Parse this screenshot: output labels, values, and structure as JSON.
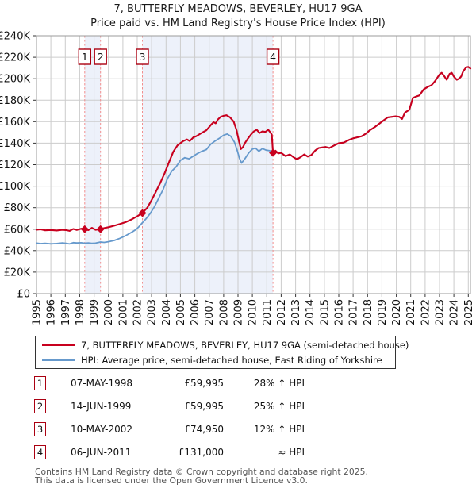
{
  "title": {
    "line1": "7, BUTTERFLY MEADOWS, BEVERLEY, HU17 9GA",
    "line2": "Price paid vs. HM Land Registry's House Price Index (HPI)"
  },
  "chart_data": {
    "type": "line",
    "title": "7, BUTTERFLY MEADOWS, BEVERLEY, HU17 9GA — Price paid vs. HPI",
    "xlabel": "",
    "ylabel": "",
    "grid": true,
    "legend_position": "bottom",
    "units": "GBP thousands",
    "x_domain": [
      1995,
      2025.15
    ],
    "y_domain": [
      0,
      240
    ],
    "x_ticks": [
      1995,
      1996,
      1997,
      1998,
      1999,
      2000,
      2001,
      2002,
      2003,
      2004,
      2005,
      2006,
      2007,
      2008,
      2009,
      2010,
      2011,
      2012,
      2013,
      2014,
      2015,
      2016,
      2017,
      2018,
      2019,
      2020,
      2021,
      2022,
      2023,
      2024,
      2025
    ],
    "y_ticks": [
      {
        "value": 240,
        "label": "£240K"
      },
      {
        "value": 220,
        "label": "£220K"
      },
      {
        "value": 200,
        "label": "£200K"
      },
      {
        "value": 180,
        "label": "£180K"
      },
      {
        "value": 160,
        "label": "£160K"
      },
      {
        "value": 140,
        "label": "£140K"
      },
      {
        "value": 120,
        "label": "£120K"
      },
      {
        "value": 100,
        "label": "£100K"
      },
      {
        "value": 80,
        "label": "£80K"
      },
      {
        "value": 60,
        "label": "£60K"
      },
      {
        "value": 40,
        "label": "£40K"
      },
      {
        "value": 20,
        "label": "£20K"
      },
      {
        "value": 0,
        "label": "£0"
      }
    ],
    "bands": [
      {
        "from": 1998.35,
        "to": 1999.45
      },
      {
        "from": 2002.36,
        "to": 2011.43
      }
    ],
    "markers": [
      {
        "label": "1",
        "year": 1998.35,
        "value": 60.0
      },
      {
        "label": "2",
        "year": 1999.45,
        "value": 60.0
      },
      {
        "label": "3",
        "year": 2002.36,
        "value": 74.95
      },
      {
        "label": "4",
        "year": 2011.43,
        "value": 131.0
      }
    ],
    "colors": {
      "price": "#c8001e",
      "hpi": "#6699cc",
      "band": "#edf1fa",
      "dashed": "#f28e8e",
      "grid": "#cccccc",
      "border": "#9b9b9b",
      "tick": "#333333",
      "marker_box_border": "#aa0011"
    },
    "series": [
      {
        "name": "7, BUTTERFLY MEADOWS, BEVERLEY, HU17 9GA (semi-detached house)",
        "color": "#c8001e",
        "points": [
          [
            1995.0,
            59.5
          ],
          [
            1995.3,
            59.8
          ],
          [
            1995.6,
            58.9
          ],
          [
            1996.0,
            59.2
          ],
          [
            1996.4,
            58.8
          ],
          [
            1996.8,
            59.4
          ],
          [
            1997.1,
            59.0
          ],
          [
            1997.3,
            58.4
          ],
          [
            1997.55,
            60.2
          ],
          [
            1997.8,
            59.2
          ],
          [
            1998.1,
            60.4
          ],
          [
            1998.35,
            60.0
          ],
          [
            1998.6,
            59.1
          ],
          [
            1998.85,
            61.2
          ],
          [
            1999.1,
            59.4
          ],
          [
            1999.45,
            60.0
          ],
          [
            1999.7,
            61.0
          ],
          [
            2000.0,
            61.8
          ],
          [
            2000.4,
            63.2
          ],
          [
            2000.8,
            64.8
          ],
          [
            2001.2,
            66.5
          ],
          [
            2001.6,
            69.0
          ],
          [
            2002.0,
            72.0
          ],
          [
            2002.36,
            75.0
          ],
          [
            2002.7,
            80.0
          ],
          [
            2003.0,
            87.0
          ],
          [
            2003.3,
            95.0
          ],
          [
            2003.6,
            103.0
          ],
          [
            2003.9,
            112.0
          ],
          [
            2004.2,
            122.0
          ],
          [
            2004.5,
            132.0
          ],
          [
            2004.8,
            138.0
          ],
          [
            2005.0,
            140.0
          ],
          [
            2005.2,
            142.0
          ],
          [
            2005.45,
            143.5
          ],
          [
            2005.65,
            142.0
          ],
          [
            2005.9,
            145.5
          ],
          [
            2006.1,
            146.5
          ],
          [
            2006.35,
            148.5
          ],
          [
            2006.6,
            150.5
          ],
          [
            2006.8,
            152.0
          ],
          [
            2007.0,
            155.0
          ],
          [
            2007.15,
            157.5
          ],
          [
            2007.3,
            159.5
          ],
          [
            2007.45,
            158.5
          ],
          [
            2007.6,
            162.0
          ],
          [
            2007.8,
            164.5
          ],
          [
            2008.0,
            165.5
          ],
          [
            2008.2,
            166.0
          ],
          [
            2008.45,
            164.0
          ],
          [
            2008.7,
            160.0
          ],
          [
            2008.9,
            152.0
          ],
          [
            2009.05,
            143.0
          ],
          [
            2009.2,
            134.5
          ],
          [
            2009.35,
            136.5
          ],
          [
            2009.5,
            140.5
          ],
          [
            2009.7,
            144.5
          ],
          [
            2009.9,
            148.0
          ],
          [
            2010.1,
            151.0
          ],
          [
            2010.3,
            152.5
          ],
          [
            2010.5,
            149.5
          ],
          [
            2010.7,
            151.0
          ],
          [
            2010.9,
            150.5
          ],
          [
            2011.1,
            152.5
          ],
          [
            2011.25,
            150.0
          ],
          [
            2011.35,
            148.0
          ],
          [
            2011.43,
            131.0
          ],
          [
            2011.6,
            133.0
          ],
          [
            2011.8,
            130.5
          ],
          [
            2012.0,
            131.0
          ],
          [
            2012.3,
            128.0
          ],
          [
            2012.6,
            129.5
          ],
          [
            2012.9,
            126.5
          ],
          [
            2013.1,
            125.0
          ],
          [
            2013.35,
            127.0
          ],
          [
            2013.6,
            129.5
          ],
          [
            2013.85,
            127.5
          ],
          [
            2014.1,
            129.0
          ],
          [
            2014.35,
            133.0
          ],
          [
            2014.6,
            135.5
          ],
          [
            2014.85,
            136.0
          ],
          [
            2015.1,
            136.5
          ],
          [
            2015.35,
            135.5
          ],
          [
            2015.7,
            138.0
          ],
          [
            2016.0,
            140.0
          ],
          [
            2016.35,
            140.5
          ],
          [
            2016.7,
            143.0
          ],
          [
            2017.0,
            144.5
          ],
          [
            2017.3,
            145.5
          ],
          [
            2017.6,
            146.5
          ],
          [
            2017.9,
            149.0
          ],
          [
            2018.15,
            152.0
          ],
          [
            2018.5,
            155.0
          ],
          [
            2018.85,
            158.5
          ],
          [
            2019.1,
            161.0
          ],
          [
            2019.4,
            164.0
          ],
          [
            2019.7,
            164.5
          ],
          [
            2019.95,
            165.0
          ],
          [
            2020.2,
            164.5
          ],
          [
            2020.4,
            162.5
          ],
          [
            2020.6,
            168.5
          ],
          [
            2020.9,
            171.0
          ],
          [
            2021.15,
            182.0
          ],
          [
            2021.4,
            183.5
          ],
          [
            2021.6,
            184.5
          ],
          [
            2021.9,
            190.0
          ],
          [
            2022.2,
            192.5
          ],
          [
            2022.45,
            194.0
          ],
          [
            2022.7,
            198.0
          ],
          [
            2023.0,
            204.0
          ],
          [
            2023.15,
            205.5
          ],
          [
            2023.3,
            203.0
          ],
          [
            2023.5,
            199.0
          ],
          [
            2023.7,
            204.5
          ],
          [
            2023.85,
            205.5
          ],
          [
            2024.0,
            202.0
          ],
          [
            2024.2,
            199.0
          ],
          [
            2024.35,
            200.0
          ],
          [
            2024.5,
            202.0
          ],
          [
            2024.65,
            207.0
          ],
          [
            2024.85,
            210.5
          ],
          [
            2025.0,
            211.0
          ],
          [
            2025.15,
            209.5
          ]
        ]
      },
      {
        "name": "HPI: Average price, semi-detached house, East Riding of Yorkshire",
        "color": "#6699cc",
        "points": [
          [
            1995.0,
            47.0
          ],
          [
            1995.3,
            46.5
          ],
          [
            1995.6,
            46.8
          ],
          [
            1996.0,
            46.3
          ],
          [
            1996.4,
            46.6
          ],
          [
            1996.8,
            47.1
          ],
          [
            1997.1,
            46.7
          ],
          [
            1997.3,
            46.2
          ],
          [
            1997.55,
            47.4
          ],
          [
            1997.8,
            47.1
          ],
          [
            1998.1,
            47.3
          ],
          [
            1998.35,
            46.9
          ],
          [
            1998.6,
            47.2
          ],
          [
            1998.85,
            46.8
          ],
          [
            1999.1,
            47.0
          ],
          [
            1999.45,
            48.0
          ],
          [
            1999.7,
            47.6
          ],
          [
            2000.0,
            48.3
          ],
          [
            2000.4,
            49.5
          ],
          [
            2000.8,
            51.5
          ],
          [
            2001.2,
            54.0
          ],
          [
            2001.6,
            57.0
          ],
          [
            2001.9,
            59.5
          ],
          [
            2002.1,
            62.0
          ],
          [
            2002.36,
            66.0
          ],
          [
            2002.6,
            69.5
          ],
          [
            2002.9,
            74.5
          ],
          [
            2003.2,
            81.0
          ],
          [
            2003.5,
            89.0
          ],
          [
            2003.8,
            97.0
          ],
          [
            2004.1,
            107.0
          ],
          [
            2004.4,
            114.0
          ],
          [
            2004.7,
            118.0
          ],
          [
            2005.0,
            124.0
          ],
          [
            2005.3,
            126.5
          ],
          [
            2005.6,
            125.5
          ],
          [
            2005.9,
            128.0
          ],
          [
            2006.2,
            130.5
          ],
          [
            2006.5,
            132.5
          ],
          [
            2006.8,
            134.0
          ],
          [
            2007.1,
            139.0
          ],
          [
            2007.4,
            142.0
          ],
          [
            2007.7,
            144.5
          ],
          [
            2008.0,
            147.5
          ],
          [
            2008.25,
            148.5
          ],
          [
            2008.5,
            146.5
          ],
          [
            2008.75,
            141.0
          ],
          [
            2008.95,
            133.0
          ],
          [
            2009.1,
            126.0
          ],
          [
            2009.25,
            121.5
          ],
          [
            2009.5,
            126.0
          ],
          [
            2009.75,
            131.0
          ],
          [
            2010.0,
            134.5
          ],
          [
            2010.2,
            135.5
          ],
          [
            2010.45,
            132.5
          ],
          [
            2010.7,
            135.0
          ],
          [
            2010.95,
            133.5
          ],
          [
            2011.2,
            133.0
          ],
          [
            2011.43,
            131.0
          ],
          [
            2011.6,
            133.0
          ],
          [
            2011.8,
            130.5
          ],
          [
            2012.0,
            131.0
          ],
          [
            2012.3,
            128.0
          ],
          [
            2012.6,
            129.5
          ],
          [
            2012.9,
            126.5
          ],
          [
            2013.1,
            125.0
          ],
          [
            2013.35,
            127.0
          ],
          [
            2013.6,
            129.5
          ],
          [
            2013.85,
            127.5
          ],
          [
            2014.1,
            129.0
          ],
          [
            2014.35,
            133.0
          ],
          [
            2014.6,
            135.5
          ],
          [
            2014.85,
            136.0
          ],
          [
            2015.1,
            136.5
          ],
          [
            2015.35,
            135.5
          ],
          [
            2015.7,
            138.0
          ],
          [
            2016.0,
            140.0
          ],
          [
            2016.35,
            140.5
          ],
          [
            2016.7,
            143.0
          ],
          [
            2017.0,
            144.5
          ],
          [
            2017.3,
            145.5
          ],
          [
            2017.6,
            146.5
          ],
          [
            2017.9,
            149.0
          ],
          [
            2018.15,
            152.0
          ],
          [
            2018.5,
            155.0
          ],
          [
            2018.85,
            158.5
          ],
          [
            2019.1,
            161.0
          ],
          [
            2019.4,
            164.0
          ],
          [
            2019.7,
            164.5
          ],
          [
            2019.95,
            165.0
          ],
          [
            2020.2,
            164.5
          ],
          [
            2020.4,
            162.5
          ],
          [
            2020.6,
            168.5
          ],
          [
            2020.9,
            171.0
          ],
          [
            2021.15,
            182.0
          ],
          [
            2021.4,
            183.5
          ],
          [
            2021.6,
            184.5
          ],
          [
            2021.9,
            190.0
          ],
          [
            2022.2,
            192.5
          ],
          [
            2022.45,
            194.0
          ],
          [
            2022.7,
            198.0
          ],
          [
            2023.0,
            204.0
          ],
          [
            2023.15,
            205.5
          ],
          [
            2023.3,
            203.0
          ],
          [
            2023.5,
            199.0
          ],
          [
            2023.7,
            204.5
          ],
          [
            2023.85,
            205.5
          ],
          [
            2024.0,
            202.0
          ],
          [
            2024.2,
            199.0
          ],
          [
            2024.35,
            200.0
          ],
          [
            2024.5,
            202.0
          ],
          [
            2024.65,
            207.0
          ],
          [
            2024.85,
            210.5
          ],
          [
            2025.0,
            211.0
          ],
          [
            2025.15,
            209.5
          ]
        ]
      }
    ]
  },
  "legend": {
    "items": [
      {
        "label": "7, BUTTERFLY MEADOWS, BEVERLEY, HU17 9GA (semi-detached house)"
      },
      {
        "label": "HPI: Average price, semi-detached house, East Riding of Yorkshire"
      }
    ]
  },
  "table": {
    "rows": [
      {
        "num": "1",
        "date": "07-MAY-1998",
        "price": "£59,995",
        "hpi": "28% ↑ HPI"
      },
      {
        "num": "2",
        "date": "14-JUN-1999",
        "price": "£59,995",
        "hpi": "25% ↑ HPI"
      },
      {
        "num": "3",
        "date": "10-MAY-2002",
        "price": "£74,950",
        "hpi": "12% ↑ HPI"
      },
      {
        "num": "4",
        "date": "06-JUN-2011",
        "price": "£131,000",
        "hpi": "≈ HPI"
      }
    ]
  },
  "footer": {
    "line1": "Contains HM Land Registry data © Crown copyright and database right 2025.",
    "line2": "This data is licensed under the Open Government Licence v3.0."
  }
}
